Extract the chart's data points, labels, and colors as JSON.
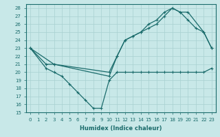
{
  "xlabel": "Humidex (Indice chaleur)",
  "xlim": [
    -0.5,
    23.5
  ],
  "ylim": [
    15,
    28.5
  ],
  "yticks": [
    15,
    16,
    17,
    18,
    19,
    20,
    21,
    22,
    23,
    24,
    25,
    26,
    27,
    28
  ],
  "xticks": [
    0,
    1,
    2,
    3,
    4,
    5,
    6,
    7,
    8,
    9,
    10,
    11,
    12,
    13,
    14,
    15,
    16,
    17,
    18,
    19,
    20,
    21,
    22,
    23
  ],
  "background_color": "#c8e8e8",
  "line_color": "#1a6b6b",
  "grid_color": "#a8d0d0",
  "line1_x": [
    0,
    2,
    3,
    10,
    11,
    12,
    13,
    14,
    15,
    16,
    17,
    18,
    19,
    20,
    22,
    23
  ],
  "line1_y": [
    23,
    21,
    21,
    20,
    22,
    24,
    24.5,
    25,
    25.5,
    26,
    27,
    28,
    27.5,
    27.5,
    25,
    23
  ],
  "line2_x": [
    0,
    2,
    3,
    4,
    5,
    6,
    7,
    8,
    9,
    10,
    11,
    12,
    13,
    14,
    15,
    16,
    17,
    18,
    19,
    20,
    21,
    22,
    23
  ],
  "line2_y": [
    23,
    20.5,
    20,
    19.5,
    18.5,
    17.5,
    16.5,
    15.5,
    15.5,
    19,
    20,
    20,
    20,
    20,
    20,
    20,
    20,
    20,
    20,
    20,
    20,
    20,
    20.5
  ],
  "line3_x": [
    0,
    3,
    10,
    11,
    12,
    13,
    14,
    15,
    16,
    17,
    18,
    19,
    20,
    21,
    22,
    23
  ],
  "line3_y": [
    23,
    21,
    19.5,
    22,
    24,
    24.5,
    25,
    26,
    26.5,
    27.5,
    28,
    27.5,
    26.5,
    25.5,
    25,
    23
  ]
}
